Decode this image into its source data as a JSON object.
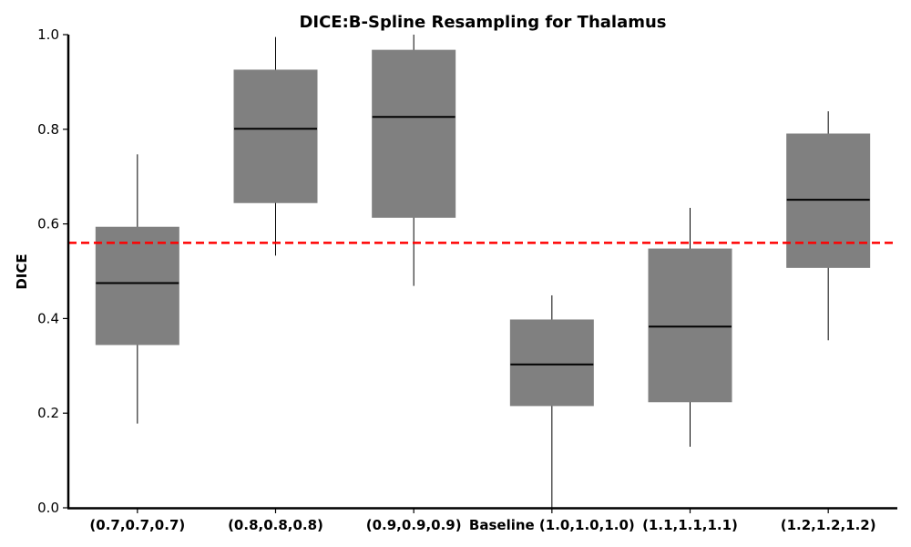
{
  "chart_data": {
    "type": "box",
    "title": "DICE:B-Spline Resampling for Thalamus",
    "xlabel": "",
    "ylabel": "DICE",
    "ylim": [
      0,
      1
    ],
    "yticks": [
      "0.0",
      "0.2",
      "0.4",
      "0.6",
      "0.8",
      "1.0"
    ],
    "ytick_values": [
      0,
      0.2,
      0.4,
      0.6,
      0.8,
      1.0
    ],
    "categories": [
      "(0.7,0.7,0.7)",
      "(0.8,0.8,0.8)",
      "(0.9,0.9,0.9)",
      "Baseline (1.0,1.0,1.0)",
      "(1.1,1.1,1.1)",
      "(1.2,1.2,1.2)"
    ],
    "boxes": [
      {
        "whisker_low": 0.178,
        "q1": 0.345,
        "median": 0.475,
        "q3": 0.593,
        "whisker_high": 0.747
      },
      {
        "whisker_low": 0.533,
        "q1": 0.645,
        "median": 0.801,
        "q3": 0.925,
        "whisker_high": 0.995
      },
      {
        "whisker_low": 0.469,
        "q1": 0.614,
        "median": 0.826,
        "q3": 0.967,
        "whisker_high": 1.0
      },
      {
        "whisker_low": 0.0,
        "q1": 0.216,
        "median": 0.303,
        "q3": 0.397,
        "whisker_high": 0.449
      },
      {
        "whisker_low": 0.129,
        "q1": 0.224,
        "median": 0.383,
        "q3": 0.547,
        "whisker_high": 0.634
      },
      {
        "whisker_low": 0.354,
        "q1": 0.508,
        "median": 0.651,
        "q3": 0.79,
        "whisker_high": 0.838
      }
    ],
    "reference_line": {
      "value": 0.56,
      "style": "dashed"
    },
    "box_color": "#808080",
    "reference_color": "#ff0000",
    "grid": false,
    "legend": "none"
  }
}
